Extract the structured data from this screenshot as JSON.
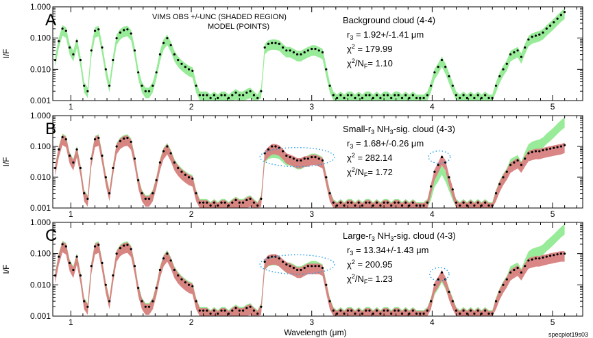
{
  "figure": {
    "xlabel": "Wavelength (μm)",
    "ylabel": "I/F",
    "legend_line1": "VIMS OBS +/-UNC (SHADED REGION)",
    "legend_line2": "MODEL (POINTS)",
    "credit": "specplot19s03",
    "colors": {
      "obs_band": "#98eb98",
      "model_band": "#d98080",
      "points": "#000000",
      "ellipse": "#1e9be6"
    }
  },
  "chart_data": [
    {
      "type": "area",
      "panel": "A",
      "title": "Background cloud (4-4)",
      "ann_r": "r",
      "ann_r_sub": "3",
      "ann_r_val": "=  1.92+/-1.41 μm",
      "ann_chi": "χ",
      "ann_chi_sup": "2",
      "ann_chi_val": "=  179.99",
      "ann_red": "χ",
      "ann_red_sup": "2",
      "ann_red_mid": "/N",
      "ann_red_sub": "F",
      "ann_red_val": "= 1.10",
      "xlim": [
        0.85,
        5.25
      ],
      "ylim": [
        0.001,
        1.0
      ],
      "yscale": "log",
      "xticks": [
        "1",
        "2",
        "3",
        "4",
        "5"
      ],
      "yticks": [
        "1.000",
        "0.100",
        "0.010",
        "0.001"
      ],
      "has_model_band": false,
      "ellipses": []
    },
    {
      "type": "area",
      "panel": "B",
      "title": "Small-r",
      "title_sub": "3",
      "title_mid": " NH",
      "title_sub2": "3",
      "title_end": "-sig. cloud (4-3)",
      "ann_r": "r",
      "ann_r_sub": "3",
      "ann_r_val": "=  1.68+/-0.26 μm",
      "ann_chi": "χ",
      "ann_chi_sup": "2",
      "ann_chi_val": "=  282.14",
      "ann_red": "χ",
      "ann_red_sup": "2",
      "ann_red_mid": "/N",
      "ann_red_sub": "F",
      "ann_red_val": "= 1.72",
      "xlim": [
        0.85,
        5.25
      ],
      "ylim": [
        0.001,
        1.0
      ],
      "yscale": "log",
      "xticks": [
        "1",
        "2",
        "3",
        "4",
        "5"
      ],
      "yticks": [
        "1.000",
        "0.100",
        "0.010",
        "0.001"
      ],
      "has_model_band": true,
      "ellipses": [
        {
          "cx": 2.88,
          "cy": 0.045,
          "wx": 0.31,
          "decades": 0.62
        },
        {
          "cx": 4.06,
          "cy": 0.045,
          "wx": 0.09,
          "decades": 0.4
        }
      ]
    },
    {
      "type": "area",
      "panel": "C",
      "title": "Large-r",
      "title_sub": "3",
      "title_mid": " NH",
      "title_sub2": "3",
      "title_end": "-sig. cloud (4-3)",
      "ann_r": "r",
      "ann_r_sub": "3",
      "ann_r_val": "= 13.34+/-1.43 μm",
      "ann_chi": "χ",
      "ann_chi_sup": "2",
      "ann_chi_val": "=  200.95",
      "ann_red": "χ",
      "ann_red_sup": "2",
      "ann_red_mid": "/N",
      "ann_red_sub": "F",
      "ann_red_val": "= 1.23",
      "xlim": [
        0.85,
        5.25
      ],
      "ylim": [
        0.001,
        1.0
      ],
      "yscale": "log",
      "xticks": [
        "1",
        "2",
        "3",
        "4",
        "5"
      ],
      "yticks": [
        "1.000",
        "0.100",
        "0.010",
        "0.001"
      ],
      "has_model_band": true,
      "ellipses": [
        {
          "cx": 2.88,
          "cy": 0.045,
          "wx": 0.31,
          "decades": 0.62
        },
        {
          "cx": 4.06,
          "cy": 0.022,
          "wx": 0.08,
          "decades": 0.42
        }
      ]
    }
  ],
  "spectrum": {
    "x": [
      0.87,
      0.9,
      0.93,
      0.96,
      0.99,
      1.02,
      1.05,
      1.08,
      1.11,
      1.14,
      1.17,
      1.2,
      1.23,
      1.26,
      1.29,
      1.32,
      1.35,
      1.38,
      1.41,
      1.44,
      1.47,
      1.5,
      1.53,
      1.56,
      1.59,
      1.62,
      1.65,
      1.68,
      1.71,
      1.74,
      1.77,
      1.8,
      1.83,
      1.86,
      1.89,
      1.92,
      1.95,
      1.98,
      2.01,
      2.04,
      2.07,
      2.1,
      2.13,
      2.16,
      2.19,
      2.22,
      2.25,
      2.28,
      2.31,
      2.34,
      2.37,
      2.4,
      2.43,
      2.46,
      2.49,
      2.52,
      2.55,
      2.58,
      2.61,
      2.64,
      2.67,
      2.7,
      2.73,
      2.76,
      2.79,
      2.82,
      2.85,
      2.88,
      2.91,
      2.94,
      2.97,
      3.0,
      3.03,
      3.06,
      3.09,
      3.12,
      3.15,
      3.18,
      3.21,
      3.24,
      3.27,
      3.3,
      3.33,
      3.36,
      3.39,
      3.42,
      3.45,
      3.48,
      3.51,
      3.54,
      3.57,
      3.6,
      3.63,
      3.66,
      3.69,
      3.72,
      3.75,
      3.78,
      3.81,
      3.84,
      3.87,
      3.9,
      3.93,
      3.96,
      3.99,
      4.02,
      4.05,
      4.08,
      4.11,
      4.14,
      4.17,
      4.2,
      4.23,
      4.26,
      4.29,
      4.32,
      4.35,
      4.38,
      4.41,
      4.44,
      4.47,
      4.5,
      4.53,
      4.56,
      4.59,
      4.62,
      4.65,
      4.68,
      4.71,
      4.74,
      4.77,
      4.8,
      4.83,
      4.86,
      4.89,
      4.92,
      4.95,
      4.98,
      5.01,
      5.04,
      5.07,
      5.1
    ],
    "obs": [
      0.02,
      0.08,
      0.2,
      0.17,
      0.05,
      0.03,
      0.08,
      0.02,
      0.003,
      0.002,
      0.04,
      0.17,
      0.19,
      0.05,
      0.01,
      0.003,
      0.02,
      0.1,
      0.15,
      0.18,
      0.19,
      0.14,
      0.04,
      0.008,
      0.003,
      0.002,
      0.002,
      0.003,
      0.008,
      0.03,
      0.07,
      0.1,
      0.06,
      0.03,
      0.02,
      0.015,
      0.012,
      0.01,
      0.009,
      0.003,
      0.0015,
      0.0015,
      0.0015,
      0.0012,
      0.0015,
      0.0012,
      0.0015,
      0.0015,
      0.0012,
      0.0015,
      0.0018,
      0.0015,
      0.0015,
      0.0018,
      0.002,
      0.0015,
      0.0012,
      0.002,
      0.05,
      0.065,
      0.07,
      0.07,
      0.065,
      0.05,
      0.04,
      0.04,
      0.035,
      0.03,
      0.03,
      0.035,
      0.04,
      0.045,
      0.045,
      0.04,
      0.035,
      0.01,
      0.003,
      0.0015,
      0.0012,
      0.0015,
      0.0012,
      0.0015,
      0.0015,
      0.0012,
      0.0015,
      0.0012,
      0.0015,
      0.0015,
      0.0012,
      0.0015,
      0.0012,
      0.0015,
      0.0015,
      0.0012,
      0.0015,
      0.0015,
      0.0012,
      0.0015,
      0.0012,
      0.0015,
      0.0012,
      0.0012,
      0.0012,
      0.0015,
      0.003,
      0.008,
      0.012,
      0.02,
      0.012,
      0.006,
      0.003,
      0.0015,
      0.0012,
      0.0015,
      0.0012,
      0.0015,
      0.0012,
      0.0015,
      0.0012,
      0.0015,
      0.0012,
      0.0012,
      0.003,
      0.006,
      0.01,
      0.015,
      0.03,
      0.035,
      0.04,
      0.025,
      0.05,
      0.09,
      0.11,
      0.12,
      0.13,
      0.15,
      0.2,
      0.25,
      0.32,
      0.42,
      0.55,
      0.68
    ],
    "model_a": [
      0.02,
      0.08,
      0.2,
      0.17,
      0.05,
      0.03,
      0.08,
      0.02,
      0.003,
      0.002,
      0.04,
      0.17,
      0.19,
      0.05,
      0.01,
      0.003,
      0.02,
      0.1,
      0.15,
      0.18,
      0.19,
      0.14,
      0.04,
      0.008,
      0.003,
      0.002,
      0.002,
      0.003,
      0.008,
      0.03,
      0.07,
      0.1,
      0.06,
      0.03,
      0.02,
      0.015,
      0.012,
      0.01,
      0.009,
      0.003,
      0.0015,
      0.0015,
      0.0015,
      0.0012,
      0.0015,
      0.0012,
      0.0015,
      0.0015,
      0.0012,
      0.0015,
      0.0018,
      0.0015,
      0.0015,
      0.0018,
      0.002,
      0.0015,
      0.0012,
      0.002,
      0.05,
      0.065,
      0.07,
      0.07,
      0.065,
      0.05,
      0.04,
      0.04,
      0.035,
      0.03,
      0.03,
      0.035,
      0.04,
      0.045,
      0.045,
      0.04,
      0.035,
      0.01,
      0.003,
      0.0015,
      0.0012,
      0.0015,
      0.0012,
      0.0015,
      0.0015,
      0.0012,
      0.0015,
      0.0012,
      0.0015,
      0.0015,
      0.0012,
      0.0015,
      0.0012,
      0.0015,
      0.0015,
      0.0012,
      0.0015,
      0.0015,
      0.0012,
      0.0015,
      0.0012,
      0.0015,
      0.0012,
      0.0012,
      0.0012,
      0.0015,
      0.003,
      0.008,
      0.012,
      0.02,
      0.012,
      0.006,
      0.003,
      0.0015,
      0.0012,
      0.0015,
      0.0012,
      0.0015,
      0.0012,
      0.0015,
      0.0012,
      0.0015,
      0.0012,
      0.0012,
      0.003,
      0.006,
      0.01,
      0.015,
      0.03,
      0.035,
      0.04,
      0.025,
      0.05,
      0.09,
      0.11,
      0.12,
      0.13,
      0.15,
      0.2,
      0.25,
      0.32,
      0.42,
      0.55,
      0.68
    ],
    "model_b": [
      0.02,
      0.08,
      0.2,
      0.17,
      0.05,
      0.03,
      0.08,
      0.02,
      0.003,
      0.002,
      0.04,
      0.17,
      0.19,
      0.05,
      0.01,
      0.003,
      0.02,
      0.1,
      0.15,
      0.18,
      0.19,
      0.14,
      0.04,
      0.008,
      0.003,
      0.002,
      0.002,
      0.003,
      0.008,
      0.03,
      0.07,
      0.1,
      0.06,
      0.03,
      0.02,
      0.015,
      0.012,
      0.01,
      0.009,
      0.003,
      0.0015,
      0.0015,
      0.0015,
      0.0012,
      0.0015,
      0.0012,
      0.0015,
      0.0015,
      0.0012,
      0.0015,
      0.0018,
      0.0015,
      0.0015,
      0.0018,
      0.002,
      0.0015,
      0.0012,
      0.002,
      0.06,
      0.08,
      0.1,
      0.1,
      0.09,
      0.07,
      0.05,
      0.045,
      0.04,
      0.035,
      0.035,
      0.04,
      0.04,
      0.045,
      0.045,
      0.04,
      0.035,
      0.01,
      0.003,
      0.0015,
      0.0012,
      0.0015,
      0.0012,
      0.0015,
      0.0015,
      0.0012,
      0.0015,
      0.0012,
      0.0015,
      0.0015,
      0.0012,
      0.0015,
      0.0012,
      0.0015,
      0.0015,
      0.0012,
      0.0015,
      0.0015,
      0.0012,
      0.0015,
      0.0012,
      0.0015,
      0.0012,
      0.0012,
      0.0012,
      0.0015,
      0.005,
      0.015,
      0.025,
      0.045,
      0.03,
      0.01,
      0.004,
      0.0015,
      0.0012,
      0.0015,
      0.0012,
      0.0015,
      0.0012,
      0.0015,
      0.0012,
      0.0015,
      0.0012,
      0.0012,
      0.003,
      0.006,
      0.01,
      0.015,
      0.025,
      0.03,
      0.035,
      0.025,
      0.04,
      0.06,
      0.065,
      0.07,
      0.07,
      0.075,
      0.08,
      0.085,
      0.09,
      0.095,
      0.1,
      0.11
    ],
    "model_c": [
      0.02,
      0.08,
      0.2,
      0.17,
      0.05,
      0.03,
      0.08,
      0.02,
      0.003,
      0.002,
      0.04,
      0.17,
      0.19,
      0.05,
      0.01,
      0.003,
      0.02,
      0.1,
      0.15,
      0.18,
      0.19,
      0.14,
      0.04,
      0.008,
      0.003,
      0.002,
      0.002,
      0.003,
      0.008,
      0.03,
      0.07,
      0.1,
      0.06,
      0.03,
      0.02,
      0.015,
      0.012,
      0.01,
      0.009,
      0.003,
      0.0015,
      0.0015,
      0.0015,
      0.0012,
      0.0015,
      0.0012,
      0.0015,
      0.0015,
      0.0012,
      0.0015,
      0.0018,
      0.0015,
      0.0015,
      0.0018,
      0.002,
      0.0015,
      0.0012,
      0.002,
      0.055,
      0.075,
      0.08,
      0.08,
      0.07,
      0.055,
      0.045,
      0.04,
      0.035,
      0.03,
      0.03,
      0.035,
      0.04,
      0.04,
      0.04,
      0.04,
      0.035,
      0.01,
      0.003,
      0.0015,
      0.0012,
      0.0015,
      0.0012,
      0.0015,
      0.0015,
      0.0012,
      0.0015,
      0.0012,
      0.0015,
      0.0015,
      0.0012,
      0.0015,
      0.0012,
      0.0015,
      0.0015,
      0.0012,
      0.0015,
      0.0015,
      0.0012,
      0.0015,
      0.0012,
      0.0015,
      0.0012,
      0.0012,
      0.0012,
      0.0015,
      0.003,
      0.01,
      0.015,
      0.025,
      0.015,
      0.006,
      0.003,
      0.0015,
      0.0012,
      0.0015,
      0.0012,
      0.0015,
      0.0012,
      0.0015,
      0.0012,
      0.0015,
      0.0012,
      0.0012,
      0.003,
      0.006,
      0.01,
      0.015,
      0.025,
      0.03,
      0.035,
      0.025,
      0.04,
      0.06,
      0.065,
      0.07,
      0.07,
      0.075,
      0.08,
      0.085,
      0.09,
      0.095,
      0.1,
      0.1
    ]
  }
}
